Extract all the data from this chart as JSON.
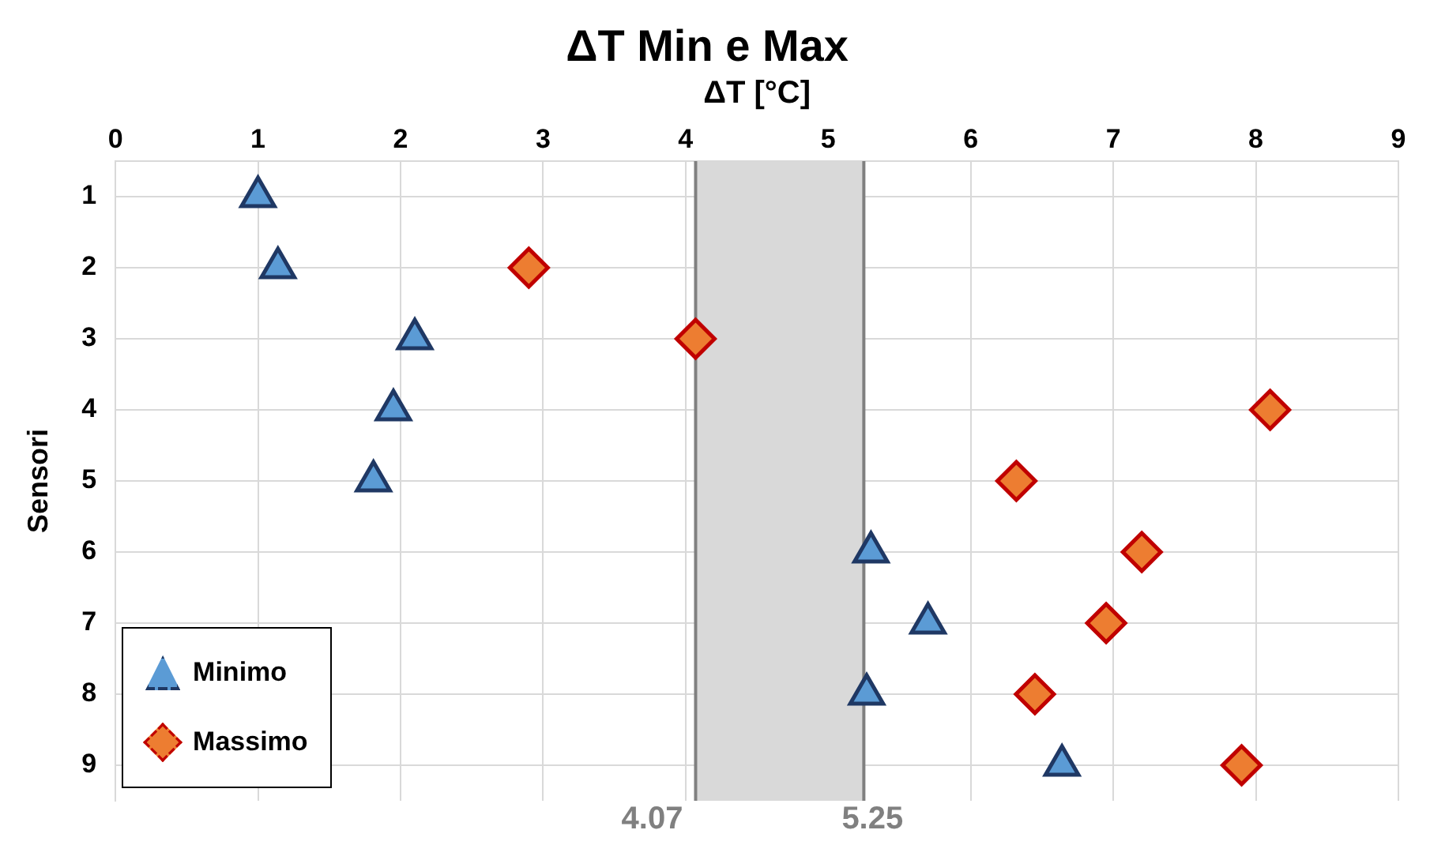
{
  "chart_data": {
    "type": "scatter",
    "title": "ΔT Min e Max",
    "xlabel": "ΔT [°C]",
    "ylabel": "Sensori",
    "xlim": [
      0,
      9
    ],
    "xticks": [
      0,
      1,
      2,
      3,
      4,
      5,
      6,
      7,
      8,
      9
    ],
    "ylim": [
      9.5,
      0.5
    ],
    "yticks": [
      1,
      2,
      3,
      4,
      5,
      6,
      7,
      8,
      9
    ],
    "grid": true,
    "legend": "bottom left",
    "series": [
      {
        "name": "Minimo",
        "color": "#5b9bd5",
        "marker": "triangle",
        "x": [
          1.0,
          1.14,
          2.1,
          1.95,
          1.81,
          5.3,
          5.7,
          5.27,
          6.64
        ],
        "values": [
          1,
          2,
          3,
          4,
          5,
          6,
          7,
          8,
          9
        ]
      },
      {
        "name": "Massimo",
        "color": "#ed7d31",
        "marker": "diamond",
        "x": [
          2.9,
          4.07,
          8.1,
          6.32,
          7.2,
          6.95,
          6.45,
          7.9
        ],
        "values": [
          2,
          3,
          4,
          5,
          6,
          7,
          8,
          9
        ]
      }
    ],
    "bands": [
      {
        "axis": "x",
        "from": 4.07,
        "to": 5.25,
        "color": "#d9d9d9"
      }
    ],
    "ref_lines": [
      {
        "axis": "x",
        "value": 4.07,
        "label": "4.07",
        "color": "#808080"
      },
      {
        "axis": "x",
        "value": 5.25,
        "label": "5.25",
        "color": "#808080"
      }
    ]
  }
}
